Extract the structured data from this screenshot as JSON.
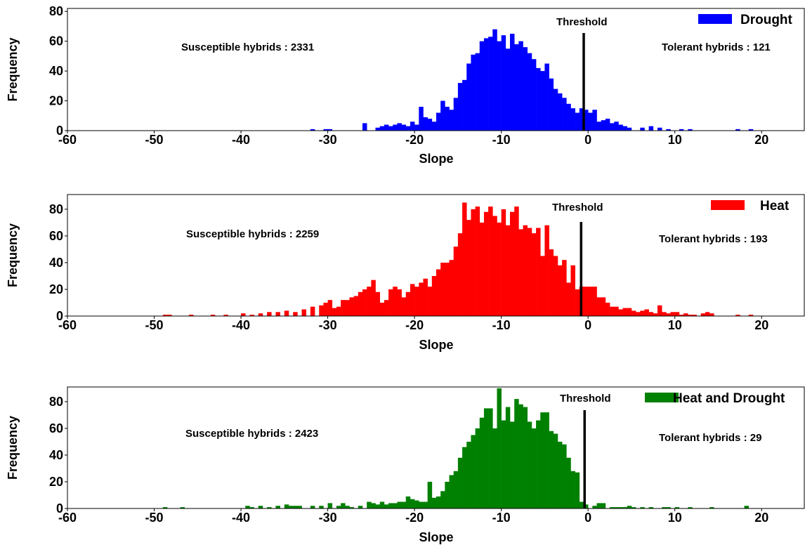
{
  "chart_data": [
    {
      "type": "bar",
      "title": "",
      "xlabel": "Slope",
      "ylabel": "Frequency",
      "xlim": [
        -60,
        25
      ],
      "ylim": [
        0,
        82
      ],
      "x_ticks": [
        -60,
        -50,
        -40,
        -30,
        -20,
        -10,
        0,
        10,
        20
      ],
      "y_ticks": [
        0,
        20,
        40,
        60,
        80
      ],
      "legend": {
        "label": "Drought",
        "color": "#0000ff",
        "position": "top-right"
      },
      "threshold": {
        "label": "Threshold",
        "x": -0.5
      },
      "annotations": {
        "susceptible": "Susceptible hybrids : 2331",
        "tolerant": "Tolerant hybrids : 121"
      },
      "bin_width": 0.5,
      "bins": [
        [
          -32,
          1
        ],
        [
          -30.5,
          1
        ],
        [
          -30,
          1
        ],
        [
          -26,
          5
        ],
        [
          -24.5,
          2
        ],
        [
          -24,
          3
        ],
        [
          -23.5,
          4
        ],
        [
          -23,
          3
        ],
        [
          -22.5,
          4
        ],
        [
          -22,
          5
        ],
        [
          -21.5,
          4
        ],
        [
          -21,
          3
        ],
        [
          -20.5,
          6
        ],
        [
          -20,
          4
        ],
        [
          -19.5,
          16
        ],
        [
          -19,
          9
        ],
        [
          -18.5,
          8
        ],
        [
          -18,
          6
        ],
        [
          -17.5,
          12
        ],
        [
          -17,
          20
        ],
        [
          -16.5,
          16
        ],
        [
          -16,
          14
        ],
        [
          -15.5,
          22
        ],
        [
          -15,
          32
        ],
        [
          -14.5,
          34
        ],
        [
          -14,
          45
        ],
        [
          -13.5,
          51
        ],
        [
          -13,
          52
        ],
        [
          -12.5,
          60
        ],
        [
          -12,
          62
        ],
        [
          -11.5,
          63
        ],
        [
          -11,
          68
        ],
        [
          -10.5,
          60
        ],
        [
          -10,
          64
        ],
        [
          -9.5,
          55
        ],
        [
          -9,
          65
        ],
        [
          -8.5,
          58
        ],
        [
          -8,
          60
        ],
        [
          -7.5,
          56
        ],
        [
          -7,
          52
        ],
        [
          -6.5,
          48
        ],
        [
          -6,
          42
        ],
        [
          -5.5,
          40
        ],
        [
          -5,
          45
        ],
        [
          -4.5,
          35
        ],
        [
          -4,
          28
        ],
        [
          -3.5,
          25
        ],
        [
          -3,
          22
        ],
        [
          -2.5,
          18
        ],
        [
          -2,
          15
        ],
        [
          -1.5,
          12
        ],
        [
          -1,
          15
        ],
        [
          -0.5,
          14
        ],
        [
          0,
          12
        ],
        [
          0.5,
          14
        ],
        [
          1,
          6
        ],
        [
          1.5,
          7
        ],
        [
          2,
          8
        ],
        [
          2.5,
          5
        ],
        [
          3,
          6
        ],
        [
          3.5,
          4
        ],
        [
          4,
          3
        ],
        [
          4.5,
          2
        ],
        [
          6,
          2
        ],
        [
          7,
          3
        ],
        [
          8,
          2
        ],
        [
          9,
          1
        ],
        [
          10.5,
          1
        ],
        [
          11.5,
          1
        ],
        [
          17,
          1
        ],
        [
          18.5,
          1
        ]
      ]
    },
    {
      "type": "bar",
      "title": "",
      "xlabel": "Slope",
      "ylabel": "Frequency",
      "xlim": [
        -60,
        25
      ],
      "ylim": [
        0,
        91
      ],
      "x_ticks": [
        -60,
        -50,
        -40,
        -30,
        -20,
        -10,
        0,
        10,
        20
      ],
      "y_ticks": [
        0,
        20,
        40,
        60,
        80
      ],
      "legend": {
        "label": "Heat",
        "color": "#ff0000",
        "position": "top-right"
      },
      "threshold": {
        "label": "Threshold",
        "x": -0.8
      },
      "annotations": {
        "susceptible": "Susceptible hybrids : 2259",
        "tolerant": "Tolerant hybrids : 193"
      },
      "bin_width": 0.5,
      "bins": [
        [
          -49,
          1
        ],
        [
          -48.5,
          1
        ],
        [
          -46,
          1
        ],
        [
          -43.5,
          1
        ],
        [
          -42,
          1
        ],
        [
          -40,
          2
        ],
        [
          -39,
          1
        ],
        [
          -38,
          2
        ],
        [
          -37,
          3
        ],
        [
          -36,
          3
        ],
        [
          -35,
          4
        ],
        [
          -34,
          3
        ],
        [
          -33,
          5
        ],
        [
          -32,
          7
        ],
        [
          -31,
          8
        ],
        [
          -30.5,
          10
        ],
        [
          -30,
          12
        ],
        [
          -29.5,
          6
        ],
        [
          -29,
          7
        ],
        [
          -28.5,
          12
        ],
        [
          -28,
          12
        ],
        [
          -27.5,
          14
        ],
        [
          -27,
          15
        ],
        [
          -26.5,
          18
        ],
        [
          -26,
          20
        ],
        [
          -25.5,
          22
        ],
        [
          -25,
          27
        ],
        [
          -24.5,
          18
        ],
        [
          -24,
          10
        ],
        [
          -23.5,
          12
        ],
        [
          -23,
          20
        ],
        [
          -22.5,
          22
        ],
        [
          -22,
          20
        ],
        [
          -21.5,
          14
        ],
        [
          -21,
          18
        ],
        [
          -20.5,
          24
        ],
        [
          -20,
          22
        ],
        [
          -19.5,
          25
        ],
        [
          -19,
          28
        ],
        [
          -18.5,
          22
        ],
        [
          -18,
          30
        ],
        [
          -17.5,
          35
        ],
        [
          -17,
          40
        ],
        [
          -16.5,
          40
        ],
        [
          -16,
          42
        ],
        [
          -15.5,
          52
        ],
        [
          -15,
          62
        ],
        [
          -14.5,
          85
        ],
        [
          -14,
          72
        ],
        [
          -13.5,
          80
        ],
        [
          -13,
          82
        ],
        [
          -12.5,
          70
        ],
        [
          -12,
          78
        ],
        [
          -11.5,
          82
        ],
        [
          -11,
          75
        ],
        [
          -10.5,
          70
        ],
        [
          -10,
          80
        ],
        [
          -9.5,
          68
        ],
        [
          -9,
          78
        ],
        [
          -8.5,
          82
        ],
        [
          -8,
          65
        ],
        [
          -7.5,
          68
        ],
        [
          -7,
          66
        ],
        [
          -6.5,
          62
        ],
        [
          -6,
          66
        ],
        [
          -5.5,
          45
        ],
        [
          -5,
          68
        ],
        [
          -4.5,
          50
        ],
        [
          -4,
          45
        ],
        [
          -3.5,
          38
        ],
        [
          -3,
          42
        ],
        [
          -2.5,
          25
        ],
        [
          -2,
          38
        ],
        [
          -1.5,
          20
        ],
        [
          -1,
          22
        ],
        [
          -0.5,
          22
        ],
        [
          0,
          22
        ],
        [
          0.5,
          22
        ],
        [
          1,
          14
        ],
        [
          1.5,
          14
        ],
        [
          2,
          10
        ],
        [
          2.5,
          7
        ],
        [
          3,
          7
        ],
        [
          3.5,
          5
        ],
        [
          4,
          6
        ],
        [
          4.5,
          6
        ],
        [
          5,
          4
        ],
        [
          5.5,
          3
        ],
        [
          6,
          4
        ],
        [
          6.5,
          5
        ],
        [
          7,
          3
        ],
        [
          7.5,
          2
        ],
        [
          8,
          8
        ],
        [
          8.5,
          3
        ],
        [
          9,
          2
        ],
        [
          9.5,
          3
        ],
        [
          10,
          3
        ],
        [
          10.5,
          1
        ],
        [
          11,
          2
        ],
        [
          11.5,
          1
        ],
        [
          12,
          1
        ],
        [
          13,
          2
        ],
        [
          13.5,
          3
        ],
        [
          14,
          2
        ],
        [
          17,
          1
        ],
        [
          18.5,
          1
        ]
      ]
    },
    {
      "type": "bar",
      "title": "",
      "xlabel": "Slope",
      "ylabel": "Frequency",
      "xlim": [
        -60,
        25
      ],
      "ylim": [
        0,
        91
      ],
      "x_ticks": [
        -60,
        -50,
        -40,
        -30,
        -20,
        -10,
        0,
        10,
        20
      ],
      "y_ticks": [
        0,
        20,
        40,
        60,
        80
      ],
      "legend": {
        "label": "Heat and Drought",
        "color": "#008000",
        "position": "top-right"
      },
      "threshold": {
        "label": "Threshold",
        "x": -0.4
      },
      "annotations": {
        "susceptible": "Susceptible hybrids : 2423",
        "tolerant": "Tolerant hybrids : 29"
      },
      "bin_width": 0.5,
      "bins": [
        [
          -49,
          1
        ],
        [
          -47,
          1
        ],
        [
          -39.5,
          2
        ],
        [
          -39,
          1
        ],
        [
          -38,
          2
        ],
        [
          -37,
          1
        ],
        [
          -36,
          2
        ],
        [
          -35,
          3
        ],
        [
          -34.5,
          2
        ],
        [
          -34,
          2
        ],
        [
          -33.5,
          2
        ],
        [
          -32,
          2
        ],
        [
          -31,
          2
        ],
        [
          -30,
          4
        ],
        [
          -29,
          2
        ],
        [
          -28.5,
          4
        ],
        [
          -28,
          2
        ],
        [
          -27.5,
          1
        ],
        [
          -26.5,
          2
        ],
        [
          -25.5,
          5
        ],
        [
          -25,
          4
        ],
        [
          -24.5,
          3
        ],
        [
          -24,
          5
        ],
        [
          -23.5,
          3
        ],
        [
          -23,
          4
        ],
        [
          -22.5,
          4
        ],
        [
          -22,
          5
        ],
        [
          -21.5,
          5
        ],
        [
          -21,
          9
        ],
        [
          -20.5,
          7
        ],
        [
          -20,
          6
        ],
        [
          -19.5,
          5
        ],
        [
          -19,
          5
        ],
        [
          -18.5,
          20
        ],
        [
          -18,
          8
        ],
        [
          -17.5,
          9
        ],
        [
          -17,
          13
        ],
        [
          -16.5,
          20
        ],
        [
          -16,
          25
        ],
        [
          -15.5,
          28
        ],
        [
          -15,
          38
        ],
        [
          -14.5,
          46
        ],
        [
          -14,
          50
        ],
        [
          -13.5,
          55
        ],
        [
          -13,
          60
        ],
        [
          -12.5,
          68
        ],
        [
          -12,
          75
        ],
        [
          -11.5,
          75
        ],
        [
          -11,
          60
        ],
        [
          -10.5,
          90
        ],
        [
          -10,
          66
        ],
        [
          -9.5,
          76
        ],
        [
          -9,
          65
        ],
        [
          -8.5,
          82
        ],
        [
          -8,
          78
        ],
        [
          -7.5,
          76
        ],
        [
          -7,
          65
        ],
        [
          -6.5,
          60
        ],
        [
          -6,
          66
        ],
        [
          -5.5,
          72
        ],
        [
          -5,
          72
        ],
        [
          -4.5,
          58
        ],
        [
          -4,
          56
        ],
        [
          -3.5,
          50
        ],
        [
          -3,
          48
        ],
        [
          -2.5,
          38
        ],
        [
          -2,
          28
        ],
        [
          -1.5,
          27
        ],
        [
          -1,
          5
        ],
        [
          -0.5,
          3
        ],
        [
          0.5,
          2
        ],
        [
          1,
          4
        ],
        [
          1.5,
          4
        ],
        [
          2.5,
          1
        ],
        [
          3,
          1
        ],
        [
          3.5,
          1
        ],
        [
          4,
          1
        ],
        [
          4.5,
          2
        ],
        [
          5,
          1
        ],
        [
          6,
          1
        ],
        [
          7,
          1
        ],
        [
          8.5,
          1
        ],
        [
          9,
          1
        ],
        [
          10,
          1
        ],
        [
          11.5,
          1
        ],
        [
          14,
          1
        ],
        [
          18,
          2
        ]
      ]
    }
  ]
}
